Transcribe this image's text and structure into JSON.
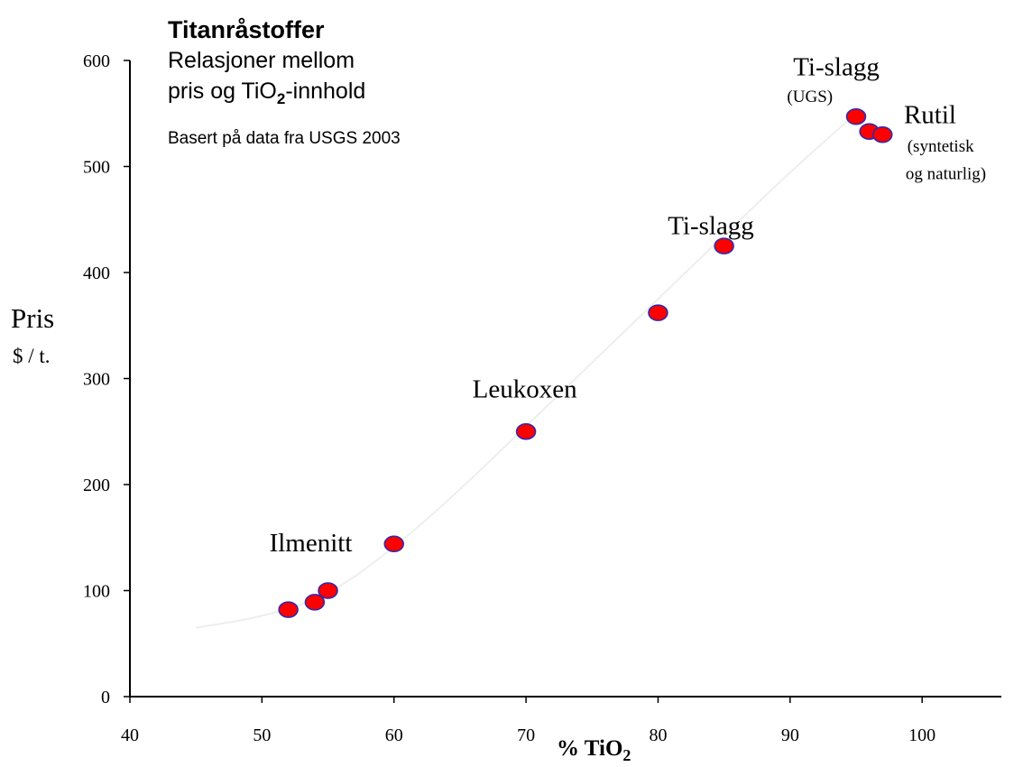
{
  "chart_data": {
    "type": "scatter",
    "title": "Titanråstoffer",
    "subtitle_line1": "Relasjoner mellom",
    "subtitle_line2_pre": "pris og TiO",
    "subtitle_line2_sub": "2",
    "subtitle_line2_post": "-innhold",
    "note": "Basert på data fra USGS 2003",
    "ylabel": "Pris",
    "ylabel_unit": "$ / t.",
    "xlabel_pre": "% TiO",
    "xlabel_sub": "2",
    "xlim": [
      40,
      106
    ],
    "ylim": [
      0,
      600
    ],
    "xticks": [
      40,
      50,
      60,
      70,
      80,
      90,
      100
    ],
    "yticks": [
      0,
      100,
      200,
      300,
      400,
      500,
      600
    ],
    "points": [
      {
        "x": 52,
        "y": 82
      },
      {
        "x": 54,
        "y": 89
      },
      {
        "x": 55,
        "y": 100
      },
      {
        "x": 60,
        "y": 144
      },
      {
        "x": 70,
        "y": 250
      },
      {
        "x": 80,
        "y": 362
      },
      {
        "x": 85,
        "y": 425
      },
      {
        "x": 95,
        "y": 547
      },
      {
        "x": 96,
        "y": 533
      },
      {
        "x": 97,
        "y": 530
      }
    ],
    "trend": {
      "x": [
        45,
        50,
        55,
        60,
        65,
        70,
        75,
        80,
        85,
        90,
        95
      ],
      "y": [
        65,
        75,
        95,
        140,
        195,
        255,
        315,
        375,
        435,
        495,
        550
      ]
    },
    "annotations": [
      {
        "text": "Ilmenitt",
        "x": 53.7,
        "y": 137,
        "size": "large"
      },
      {
        "text": "Leukoxen",
        "x": 69.9,
        "y": 282,
        "size": "large"
      },
      {
        "text": "Ti-slagg",
        "x": 84,
        "y": 436,
        "size": "large"
      },
      {
        "text": "Ti-slagg",
        "x": 93.5,
        "y": 586,
        "size": "large"
      },
      {
        "text": "(UGS)",
        "x": 91.5,
        "y": 561,
        "size": "small"
      },
      {
        "text": "Rutil",
        "x": 100.6,
        "y": 541,
        "size": "large"
      },
      {
        "text": "(syntetisk",
        "x": 101.4,
        "y": 514,
        "size": "small"
      },
      {
        "text": "og naturlig)",
        "x": 101.8,
        "y": 488,
        "size": "small"
      }
    ],
    "colors": {
      "point_fill": "#ff0000",
      "point_stroke": "#2b2bb0",
      "axis": "#000000",
      "trend": "#eeeeee"
    },
    "grid": false,
    "legend": "none"
  }
}
